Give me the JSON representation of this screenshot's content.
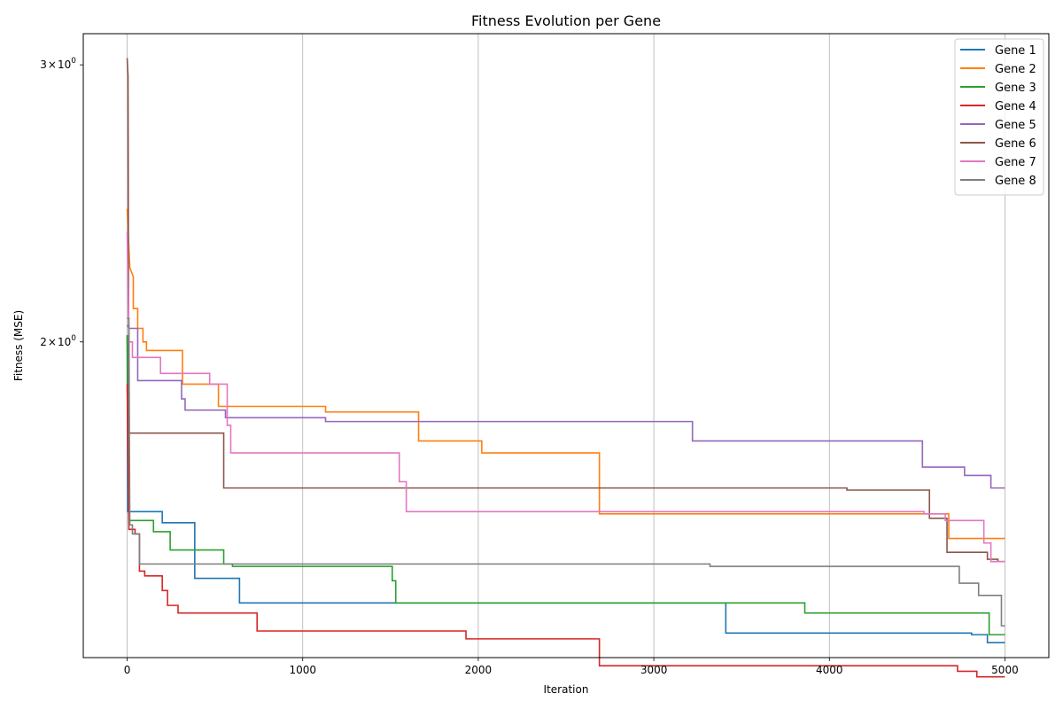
{
  "chart_data": {
    "type": "line",
    "title": "Fitness Evolution per Gene",
    "xlabel": "Iteration",
    "ylabel": "Fitness (MSE)",
    "xlim": [
      -250,
      5250
    ],
    "ylim": [
      1.26,
      3.14
    ],
    "yscale": "log",
    "grid": "x-only",
    "legend_position": "top-right",
    "x_ticks": [
      {
        "value": 0,
        "label": "0"
      },
      {
        "value": 1000,
        "label": "1000"
      },
      {
        "value": 2000,
        "label": "2000"
      },
      {
        "value": 3000,
        "label": "3000"
      },
      {
        "value": 4000,
        "label": "4000"
      },
      {
        "value": 5000,
        "label": "5000"
      }
    ],
    "y_ticks": [
      {
        "value": 2,
        "base": "2",
        "mult": "×",
        "pow_base": "10",
        "exp": "0"
      },
      {
        "value": 3,
        "base": "3",
        "mult": "×",
        "pow_base": "10",
        "exp": "0"
      }
    ],
    "series": [
      {
        "name": "Gene 1",
        "color": "#1f77b4",
        "points": [
          [
            0,
            2.02
          ],
          [
            3,
            1.56
          ],
          [
            200,
            1.56
          ],
          [
            200,
            1.535
          ],
          [
            385,
            1.535
          ],
          [
            385,
            1.415
          ],
          [
            640,
            1.415
          ],
          [
            640,
            1.365
          ],
          [
            3410,
            1.365
          ],
          [
            3410,
            1.306
          ],
          [
            4810,
            1.306
          ],
          [
            4810,
            1.303
          ],
          [
            4900,
            1.303
          ],
          [
            4900,
            1.288
          ],
          [
            5000,
            1.288
          ]
        ]
      },
      {
        "name": "Gene 2",
        "color": "#ff7f0e",
        "points": [
          [
            0,
            2.43
          ],
          [
            15,
            2.23
          ],
          [
            35,
            2.2
          ],
          [
            35,
            2.1
          ],
          [
            60,
            2.1
          ],
          [
            60,
            2.04
          ],
          [
            90,
            2.04
          ],
          [
            90,
            2.0
          ],
          [
            110,
            2.0
          ],
          [
            110,
            1.975
          ],
          [
            315,
            1.975
          ],
          [
            315,
            1.88
          ],
          [
            520,
            1.88
          ],
          [
            520,
            1.82
          ],
          [
            1130,
            1.82
          ],
          [
            1130,
            1.805
          ],
          [
            1660,
            1.805
          ],
          [
            1660,
            1.73
          ],
          [
            2020,
            1.73
          ],
          [
            2020,
            1.7
          ],
          [
            2690,
            1.7
          ],
          [
            2690,
            1.555
          ],
          [
            4680,
            1.555
          ],
          [
            4680,
            1.5
          ],
          [
            5000,
            1.5
          ]
        ]
      },
      {
        "name": "Gene 3",
        "color": "#2ca02c",
        "points": [
          [
            0,
            2.02
          ],
          [
            10,
            1.54
          ],
          [
            150,
            1.54
          ],
          [
            150,
            1.515
          ],
          [
            245,
            1.515
          ],
          [
            245,
            1.475
          ],
          [
            550,
            1.475
          ],
          [
            550,
            1.445
          ],
          [
            600,
            1.445
          ],
          [
            600,
            1.44
          ],
          [
            1510,
            1.44
          ],
          [
            1510,
            1.41
          ],
          [
            1530,
            1.41
          ],
          [
            1530,
            1.365
          ],
          [
            3860,
            1.365
          ],
          [
            3860,
            1.345
          ],
          [
            4910,
            1.345
          ],
          [
            4910,
            1.303
          ],
          [
            5000,
            1.303
          ]
        ]
      },
      {
        "name": "Gene 4",
        "color": "#d62728",
        "points": [
          [
            0,
            1.88
          ],
          [
            10,
            1.52
          ],
          [
            45,
            1.52
          ],
          [
            45,
            1.51
          ],
          [
            70,
            1.51
          ],
          [
            70,
            1.43
          ],
          [
            100,
            1.43
          ],
          [
            100,
            1.42
          ],
          [
            200,
            1.42
          ],
          [
            200,
            1.39
          ],
          [
            230,
            1.39
          ],
          [
            230,
            1.36
          ],
          [
            290,
            1.36
          ],
          [
            290,
            1.345
          ],
          [
            740,
            1.345
          ],
          [
            740,
            1.31
          ],
          [
            1930,
            1.31
          ],
          [
            1930,
            1.295
          ],
          [
            2690,
            1.295
          ],
          [
            2690,
            1.245
          ],
          [
            4730,
            1.245
          ],
          [
            4730,
            1.235
          ],
          [
            4840,
            1.235
          ],
          [
            4840,
            1.225
          ],
          [
            5000,
            1.225
          ]
        ]
      },
      {
        "name": "Gene 5",
        "color": "#9467bd",
        "points": [
          [
            0,
            2.05
          ],
          [
            10,
            2.04
          ],
          [
            60,
            2.04
          ],
          [
            60,
            1.89
          ],
          [
            310,
            1.89
          ],
          [
            310,
            1.84
          ],
          [
            330,
            1.84
          ],
          [
            330,
            1.81
          ],
          [
            560,
            1.81
          ],
          [
            560,
            1.79
          ],
          [
            1130,
            1.79
          ],
          [
            1130,
            1.78
          ],
          [
            3220,
            1.78
          ],
          [
            3220,
            1.73
          ],
          [
            4530,
            1.73
          ],
          [
            4530,
            1.665
          ],
          [
            4770,
            1.665
          ],
          [
            4770,
            1.645
          ],
          [
            4920,
            1.645
          ],
          [
            4920,
            1.615
          ],
          [
            5000,
            1.615
          ]
        ]
      },
      {
        "name": "Gene 6",
        "color": "#8c564b",
        "points": [
          [
            0,
            3.03
          ],
          [
            5,
            2.95
          ],
          [
            10,
            1.75
          ],
          [
            550,
            1.75
          ],
          [
            550,
            1.615
          ],
          [
            4100,
            1.615
          ],
          [
            4100,
            1.61
          ],
          [
            4570,
            1.61
          ],
          [
            4570,
            1.545
          ],
          [
            4670,
            1.545
          ],
          [
            4670,
            1.47
          ],
          [
            4900,
            1.47
          ],
          [
            4900,
            1.455
          ],
          [
            4960,
            1.455
          ],
          [
            4960,
            1.45
          ],
          [
            5000,
            1.45
          ]
        ]
      },
      {
        "name": "Gene 7",
        "color": "#e377c2",
        "points": [
          [
            0,
            2.35
          ],
          [
            10,
            2.0
          ],
          [
            30,
            2.0
          ],
          [
            30,
            1.955
          ],
          [
            190,
            1.955
          ],
          [
            190,
            1.91
          ],
          [
            470,
            1.91
          ],
          [
            470,
            1.88
          ],
          [
            570,
            1.88
          ],
          [
            570,
            1.77
          ],
          [
            590,
            1.77
          ],
          [
            590,
            1.7
          ],
          [
            1550,
            1.7
          ],
          [
            1550,
            1.63
          ],
          [
            1590,
            1.63
          ],
          [
            1590,
            1.56
          ],
          [
            4540,
            1.56
          ],
          [
            4540,
            1.555
          ],
          [
            4660,
            1.555
          ],
          [
            4660,
            1.54
          ],
          [
            4880,
            1.54
          ],
          [
            4880,
            1.49
          ],
          [
            4920,
            1.49
          ],
          [
            4920,
            1.45
          ],
          [
            5000,
            1.45
          ]
        ]
      },
      {
        "name": "Gene 8",
        "color": "#7f7f7f",
        "points": [
          [
            0,
            2.07
          ],
          [
            10,
            2.07
          ],
          [
            15,
            1.53
          ],
          [
            30,
            1.53
          ],
          [
            30,
            1.51
          ],
          [
            70,
            1.51
          ],
          [
            70,
            1.445
          ],
          [
            3320,
            1.445
          ],
          [
            3320,
            1.44
          ],
          [
            4740,
            1.44
          ],
          [
            4740,
            1.405
          ],
          [
            4850,
            1.405
          ],
          [
            4850,
            1.38
          ],
          [
            4980,
            1.38
          ],
          [
            4980,
            1.32
          ],
          [
            5000,
            1.32
          ]
        ]
      }
    ]
  }
}
